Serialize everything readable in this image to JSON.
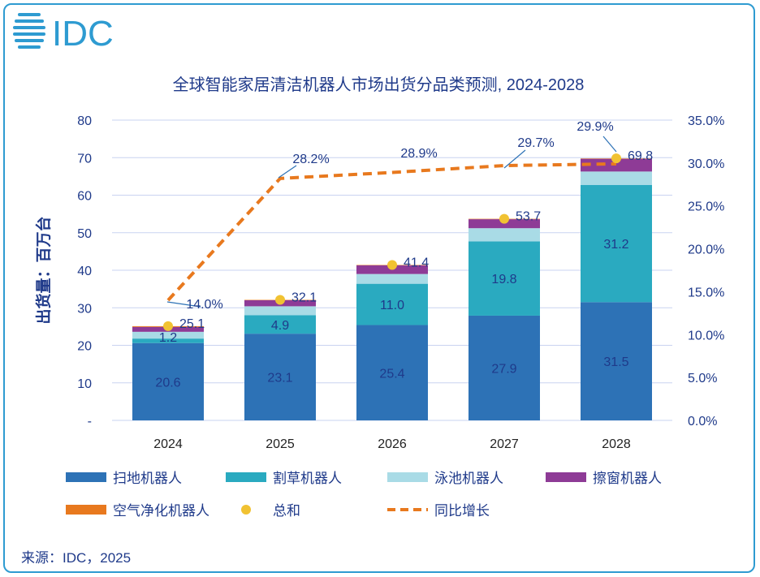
{
  "logo": {
    "text": "IDC"
  },
  "source": "来源：IDC，2025",
  "colors": {
    "scan": "#2d72b6",
    "mower": "#2aaac0",
    "pool": "#a9dbe6",
    "window": "#8e3b96",
    "air": "#e8791e",
    "total": "#f1c232",
    "yoy": "#e8791e",
    "text": "#1f3a8a",
    "grid": "#c9d3f0",
    "frame": "#2e9bd1"
  },
  "chart_data": {
    "type": "bar",
    "title": "全球智能家居清洁机器人市场出货分品类预测, 2024-2028",
    "ylabel": "出货量：百万台",
    "categories": [
      "2024",
      "2025",
      "2026",
      "2027",
      "2028"
    ],
    "ylim": [
      0,
      80
    ],
    "y_ticks": [
      "-",
      "10",
      "20",
      "30",
      "40",
      "50",
      "60",
      "70",
      "80"
    ],
    "y2lim": [
      0,
      35
    ],
    "y2_ticks": [
      "0.0%",
      "5.0%",
      "10.0%",
      "15.0%",
      "20.0%",
      "25.0%",
      "30.0%",
      "35.0%"
    ],
    "series": [
      {
        "name": "扫地机器人",
        "values": [
          20.6,
          23.1,
          25.4,
          27.9,
          31.5
        ],
        "labels": [
          "20.6",
          "23.1",
          "25.4",
          "27.9",
          "31.5"
        ]
      },
      {
        "name": "割草机器人",
        "values": [
          1.2,
          4.9,
          11.0,
          19.8,
          31.2
        ],
        "labels": [
          "1.2",
          "4.9",
          "11.0",
          "19.8",
          "31.2"
        ]
      },
      {
        "name": "泳池机器人",
        "values": [
          1.8,
          2.4,
          2.6,
          3.5,
          3.6
        ]
      },
      {
        "name": "擦窗机器人",
        "values": [
          1.3,
          1.6,
          2.3,
          2.4,
          3.4
        ]
      },
      {
        "name": "空气净化机器人",
        "values": [
          0.2,
          0.1,
          0.1,
          0.1,
          0.1
        ]
      }
    ],
    "total": {
      "name": "总和",
      "values": [
        25.1,
        32.1,
        41.4,
        53.7,
        69.8
      ],
      "labels": [
        "25.1",
        "32.1",
        "41.4",
        "53.7",
        "69.8"
      ]
    },
    "yoy": {
      "name": "同比增长",
      "values": [
        14.0,
        28.2,
        28.9,
        29.7,
        29.9
      ],
      "labels": [
        "14.0%",
        "28.2%",
        "28.9%",
        "29.7%",
        "29.9%"
      ]
    },
    "grid": true,
    "legend_position": "bottom"
  }
}
